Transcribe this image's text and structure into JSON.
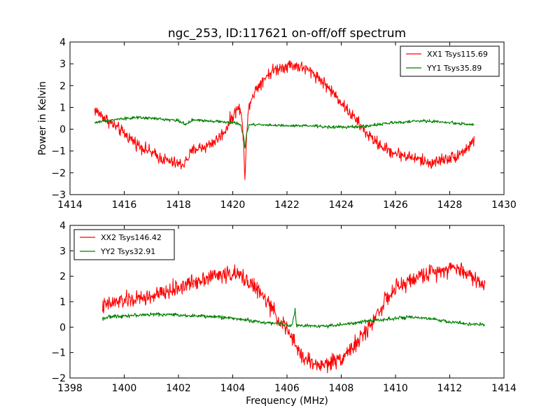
{
  "figure": {
    "title": "ngc_253, ID:117621 on-off/off spectrum",
    "xlabel": "Frequency (MHz)",
    "ylabel": "Power in Kelvin"
  },
  "chart_data": [
    {
      "type": "line",
      "title": "ngc_253, ID:117621 on-off/off spectrum",
      "ylabel": "Power in Kelvin",
      "xlabel": "",
      "xlim": [
        1414,
        1430
      ],
      "ylim": [
        -3,
        4
      ],
      "xticks": [
        "1414",
        "1416",
        "1418",
        "1420",
        "1422",
        "1424",
        "1426",
        "1428",
        "1430"
      ],
      "yticks": [
        "−3",
        "−2",
        "−1",
        "0",
        "1",
        "2",
        "3",
        "4"
      ],
      "grid": false,
      "legend_position": "top-right",
      "series": [
        {
          "name": "XX1 Tsys115.69",
          "color": "#ff0000",
          "noise": 0.14,
          "x": [
            1414.9,
            1415.2,
            1415.5,
            1415.8,
            1416.1,
            1416.5,
            1416.9,
            1417.3,
            1417.7,
            1418.0,
            1418.2,
            1418.4,
            1418.6,
            1419.0,
            1419.4,
            1419.7,
            1419.9,
            1420.1,
            1420.2,
            1420.3,
            1420.4,
            1420.45,
            1420.5,
            1420.6,
            1420.8,
            1421.0,
            1421.2,
            1421.5,
            1421.8,
            1422.1,
            1422.4,
            1422.7,
            1423.0,
            1423.3,
            1423.6,
            1423.9,
            1424.2,
            1424.5,
            1424.8,
            1425.1,
            1425.4,
            1425.7,
            1426.0,
            1426.3,
            1426.6,
            1426.9,
            1427.2,
            1427.5,
            1427.8,
            1428.1,
            1428.4,
            1428.7,
            1428.9
          ],
          "y": [
            0.9,
            0.6,
            0.3,
            0.0,
            -0.3,
            -0.7,
            -1.0,
            -1.3,
            -1.5,
            -1.6,
            -1.6,
            -1.2,
            -0.9,
            -0.8,
            -0.5,
            -0.1,
            0.4,
            0.8,
            1.0,
            0.8,
            -0.5,
            -2.2,
            -0.6,
            1.2,
            1.7,
            2.1,
            2.4,
            2.7,
            2.85,
            2.95,
            2.9,
            2.75,
            2.55,
            2.2,
            1.8,
            1.4,
            0.9,
            0.5,
            0.0,
            -0.4,
            -0.7,
            -0.95,
            -1.1,
            -1.2,
            -1.3,
            -1.4,
            -1.55,
            -1.5,
            -1.35,
            -1.3,
            -1.1,
            -0.8,
            -0.5
          ]
        },
        {
          "name": "YY1 Tsys35.89",
          "color": "#008000",
          "noise": 0.035,
          "x": [
            1414.9,
            1415.5,
            1416.0,
            1416.5,
            1417.0,
            1417.5,
            1418.0,
            1418.3,
            1418.5,
            1419.0,
            1419.5,
            1420.0,
            1420.2,
            1420.3,
            1420.4,
            1420.45,
            1420.5,
            1420.6,
            1421.0,
            1421.5,
            1422.0,
            1422.5,
            1423.0,
            1423.5,
            1424.0,
            1424.5,
            1425.0,
            1425.5,
            1426.0,
            1426.5,
            1427.0,
            1427.5,
            1428.0,
            1428.5,
            1428.9
          ],
          "y": [
            0.3,
            0.42,
            0.5,
            0.52,
            0.5,
            0.45,
            0.4,
            0.2,
            0.42,
            0.4,
            0.35,
            0.3,
            0.25,
            0.15,
            -0.3,
            -0.9,
            -0.3,
            0.2,
            0.22,
            0.18,
            0.15,
            0.15,
            0.15,
            0.1,
            0.1,
            0.1,
            0.15,
            0.25,
            0.3,
            0.35,
            0.38,
            0.35,
            0.3,
            0.25,
            0.2
          ]
        }
      ]
    },
    {
      "type": "line",
      "title": "",
      "ylabel": "",
      "xlabel": "Frequency (MHz)",
      "xlim": [
        1398,
        1414
      ],
      "ylim": [
        -2,
        4
      ],
      "xticks": [
        "1398",
        "1400",
        "1402",
        "1404",
        "1406",
        "1408",
        "1410",
        "1412",
        "1414"
      ],
      "yticks": [
        "−2",
        "−1",
        "0",
        "1",
        "2",
        "3",
        "4"
      ],
      "grid": false,
      "legend_position": "top-left",
      "series": [
        {
          "name": "XX2 Tsys146.42",
          "color": "#ff0000",
          "noise": 0.16,
          "x": [
            1399.2,
            1399.6,
            1400.0,
            1400.5,
            1401.0,
            1401.5,
            1402.0,
            1402.5,
            1403.0,
            1403.5,
            1404.0,
            1404.3,
            1404.6,
            1405.0,
            1405.3,
            1405.6,
            1406.0,
            1406.3,
            1406.6,
            1407.0,
            1407.3,
            1407.6,
            1408.0,
            1408.3,
            1408.6,
            1409.0,
            1409.3,
            1409.6,
            1410.0,
            1410.5,
            1411.0,
            1411.5,
            1412.0,
            1412.3,
            1412.6,
            1413.0,
            1413.3
          ],
          "y": [
            0.8,
            0.95,
            1.05,
            1.1,
            1.2,
            1.35,
            1.55,
            1.75,
            1.95,
            2.05,
            2.1,
            2.0,
            1.8,
            1.35,
            0.95,
            0.45,
            -0.1,
            -0.7,
            -1.2,
            -1.45,
            -1.5,
            -1.4,
            -1.2,
            -0.9,
            -0.6,
            -0.05,
            0.5,
            1.0,
            1.5,
            1.8,
            2.05,
            2.2,
            2.35,
            2.3,
            2.15,
            1.85,
            1.6
          ]
        },
        {
          "name": "YY2 Tsys32.91",
          "color": "#008000",
          "noise": 0.035,
          "x": [
            1399.2,
            1399.6,
            1400.0,
            1400.5,
            1401.0,
            1401.5,
            1402.0,
            1402.5,
            1403.0,
            1403.5,
            1404.0,
            1404.5,
            1405.0,
            1405.5,
            1406.0,
            1406.2,
            1406.3,
            1406.35,
            1406.4,
            1406.6,
            1407.0,
            1407.5,
            1408.0,
            1408.5,
            1409.0,
            1409.5,
            1410.0,
            1410.5,
            1411.0,
            1411.5,
            1412.0,
            1412.5,
            1413.0,
            1413.3
          ],
          "y": [
            0.35,
            0.42,
            0.45,
            0.47,
            0.5,
            0.5,
            0.48,
            0.45,
            0.42,
            0.4,
            0.35,
            0.28,
            0.2,
            0.15,
            0.1,
            0.08,
            0.72,
            0.1,
            0.05,
            0.05,
            0.05,
            0.05,
            0.1,
            0.15,
            0.25,
            0.3,
            0.35,
            0.38,
            0.35,
            0.3,
            0.2,
            0.15,
            0.1,
            0.08
          ]
        }
      ]
    }
  ]
}
